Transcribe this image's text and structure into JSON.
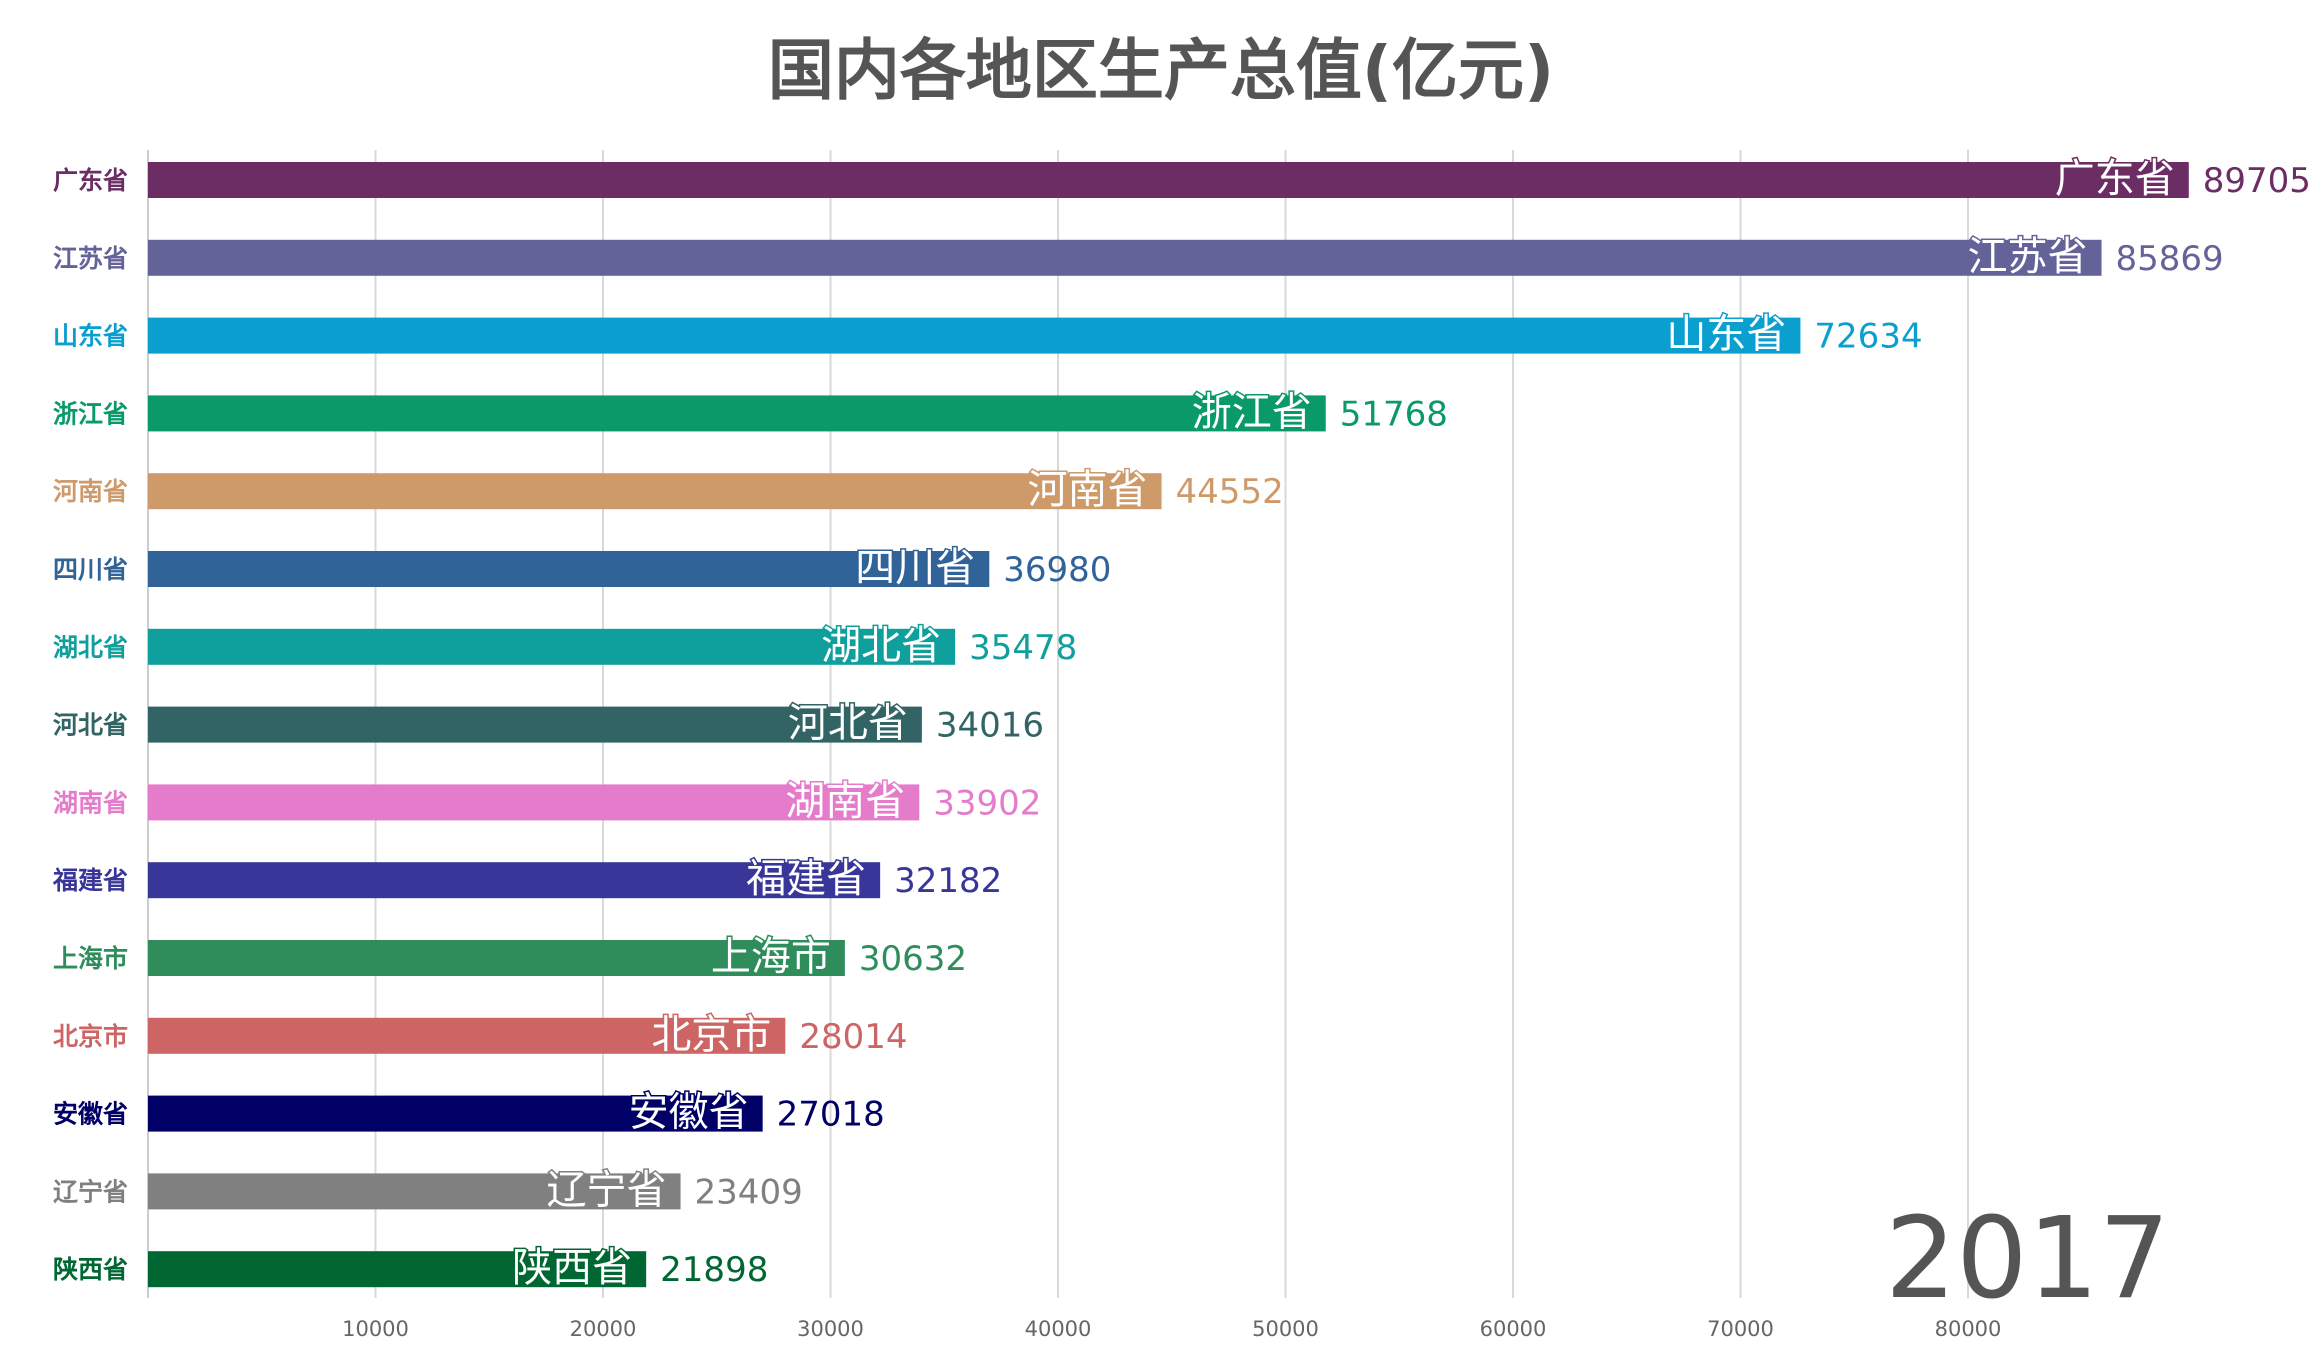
{
  "chart_data": {
    "type": "bar",
    "orientation": "horizontal",
    "title": "国内各地区生产总值(亿元)",
    "year": "2017",
    "categories": [
      "广东省",
      "江苏省",
      "山东省",
      "浙江省",
      "河南省",
      "四川省",
      "湖北省",
      "河北省",
      "湖南省",
      "福建省",
      "上海市",
      "北京市",
      "安徽省",
      "辽宁省",
      "陕西省"
    ],
    "values": [
      89705,
      85869,
      72634,
      51768,
      44552,
      36980,
      35478,
      34016,
      33902,
      32182,
      30632,
      28014,
      27018,
      23409,
      21898
    ],
    "colors": [
      "#6b2d63",
      "#646399",
      "#0b9fd0",
      "#0a9a69",
      "#cf9a69",
      "#306398",
      "#0f9f9c",
      "#326465",
      "#e57ccb",
      "#383699",
      "#2e8d5b",
      "#cd6565",
      "#000066",
      "#808080",
      "#006733"
    ],
    "xlim": [
      0,
      95000
    ],
    "xticks": [
      "10000",
      "20000",
      "30000",
      "40000",
      "50000",
      "60000",
      "70000",
      "80000"
    ],
    "xtick_values": [
      10000,
      20000,
      30000,
      40000,
      50000,
      60000,
      70000,
      80000
    ],
    "grid": "vertical",
    "legend": "none"
  }
}
